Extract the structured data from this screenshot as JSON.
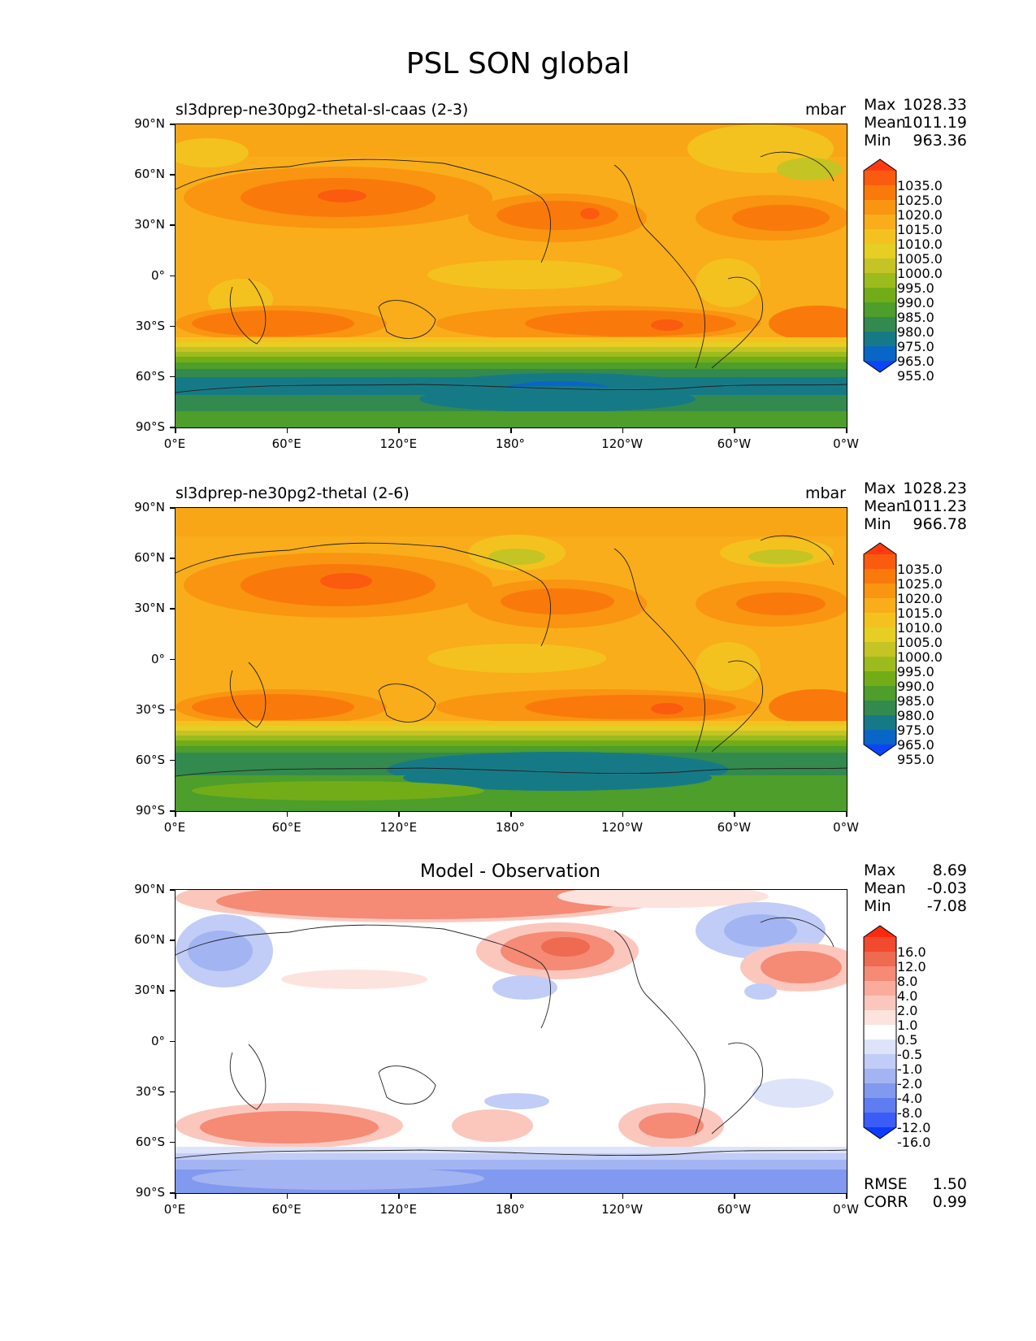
{
  "title": "PSL SON global",
  "panels": [
    {
      "left_title": "sl3dprep-ne30pg2-thetal-sl-caas (2-3)",
      "units": "mbar",
      "center_title": "",
      "stats": [
        {
          "label": "Max",
          "value": "1028.33"
        },
        {
          "label": "Mean",
          "value": "1011.19"
        },
        {
          "label": "Min",
          "value": "963.36"
        }
      ],
      "colorbar": {
        "labels": [
          "1035.0",
          "1025.0",
          "1020.0",
          "1015.0",
          "1010.0",
          "1005.0",
          "1000.0",
          "995.0",
          "990.0",
          "985.0",
          "980.0",
          "975.0",
          "965.0",
          "955.0"
        ],
        "colors": [
          "#ff3a12",
          "#fb5b0e",
          "#f97a0b",
          "#f99511",
          "#f9ad1a",
          "#f4c21e",
          "#e6ce24",
          "#c4c424",
          "#9cbb1d",
          "#72ad17",
          "#4d9e2b",
          "#338a4e",
          "#167a86",
          "#0a66c6",
          "#0b45f8"
        ]
      }
    },
    {
      "left_title": "sl3dprep-ne30pg2-thetal (2-6)",
      "units": "mbar",
      "center_title": "",
      "stats": [
        {
          "label": "Max",
          "value": "1028.23"
        },
        {
          "label": "Mean",
          "value": "1011.23"
        },
        {
          "label": "Min",
          "value": "966.78"
        }
      ],
      "colorbar": {
        "labels": [
          "1035.0",
          "1025.0",
          "1020.0",
          "1015.0",
          "1010.0",
          "1005.0",
          "1000.0",
          "995.0",
          "990.0",
          "985.0",
          "980.0",
          "975.0",
          "965.0",
          "955.0"
        ],
        "colors": [
          "#ff3a12",
          "#fb5b0e",
          "#f97a0b",
          "#f99511",
          "#f9ad1a",
          "#f4c21e",
          "#e6ce24",
          "#c4c424",
          "#9cbb1d",
          "#72ad17",
          "#4d9e2b",
          "#338a4e",
          "#167a86",
          "#0a66c6",
          "#0b45f8"
        ]
      }
    },
    {
      "left_title": "",
      "units": "",
      "center_title": "Model - Observation",
      "stats": [
        {
          "label": "Max",
          "value": "8.69"
        },
        {
          "label": "Mean",
          "value": "-0.03"
        },
        {
          "label": "Min",
          "value": "-7.08"
        }
      ],
      "colorbar": {
        "labels": [
          "16.0",
          "12.0",
          "8.0",
          "4.0",
          "2.0",
          "1.0",
          "0.5",
          "-0.5",
          "-1.0",
          "-2.0",
          "-4.0",
          "-8.0",
          "-12.0",
          "-16.0"
        ],
        "colors": [
          "#ff2a0e",
          "#f24a2e",
          "#ee6a50",
          "#f58a75",
          "#f9ab9c",
          "#fbc7bd",
          "#fde3de",
          "#ffffff",
          "#dde4fa",
          "#c1cdf6",
          "#a3b4f2",
          "#8199ee",
          "#5f7cf0",
          "#3b5cf7",
          "#0c3cfb"
        ]
      },
      "footer": [
        {
          "label": "RMSE",
          "value": "1.50"
        },
        {
          "label": "CORR",
          "value": "0.99"
        }
      ]
    }
  ],
  "lat_ticks": [
    "90°N",
    "60°N",
    "30°N",
    "0°",
    "30°S",
    "60°S",
    "90°S"
  ],
  "lon_ticks": [
    "0°E",
    "60°E",
    "120°E",
    "180°",
    "120°W",
    "60°W",
    "0°W"
  ]
}
